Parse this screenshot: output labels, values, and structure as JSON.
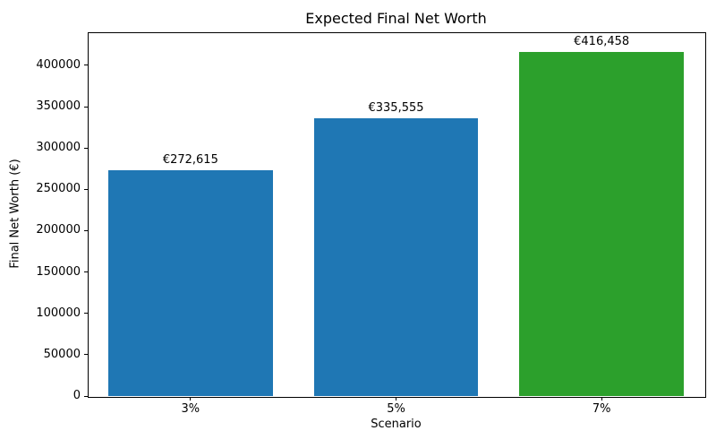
{
  "chart_data": {
    "type": "bar",
    "title": "Expected Final Net Worth",
    "xlabel": "Scenario",
    "ylabel": "Final Net Worth (€)",
    "categories": [
      "3%",
      "5%",
      "7%"
    ],
    "values": [
      272615,
      335555,
      416458
    ],
    "bar_value_labels": [
      "€272,615",
      "€335,555",
      "€416,458"
    ],
    "bar_colors": [
      "#1f77b4",
      "#1f77b4",
      "#2ca02c"
    ],
    "ylim": [
      0,
      440000
    ],
    "yticks": [
      0,
      50000,
      100000,
      150000,
      200000,
      250000,
      300000,
      350000,
      400000
    ],
    "grid": false,
    "legend": "none",
    "background_color": "#ffffff",
    "axis_color": "#000000"
  }
}
